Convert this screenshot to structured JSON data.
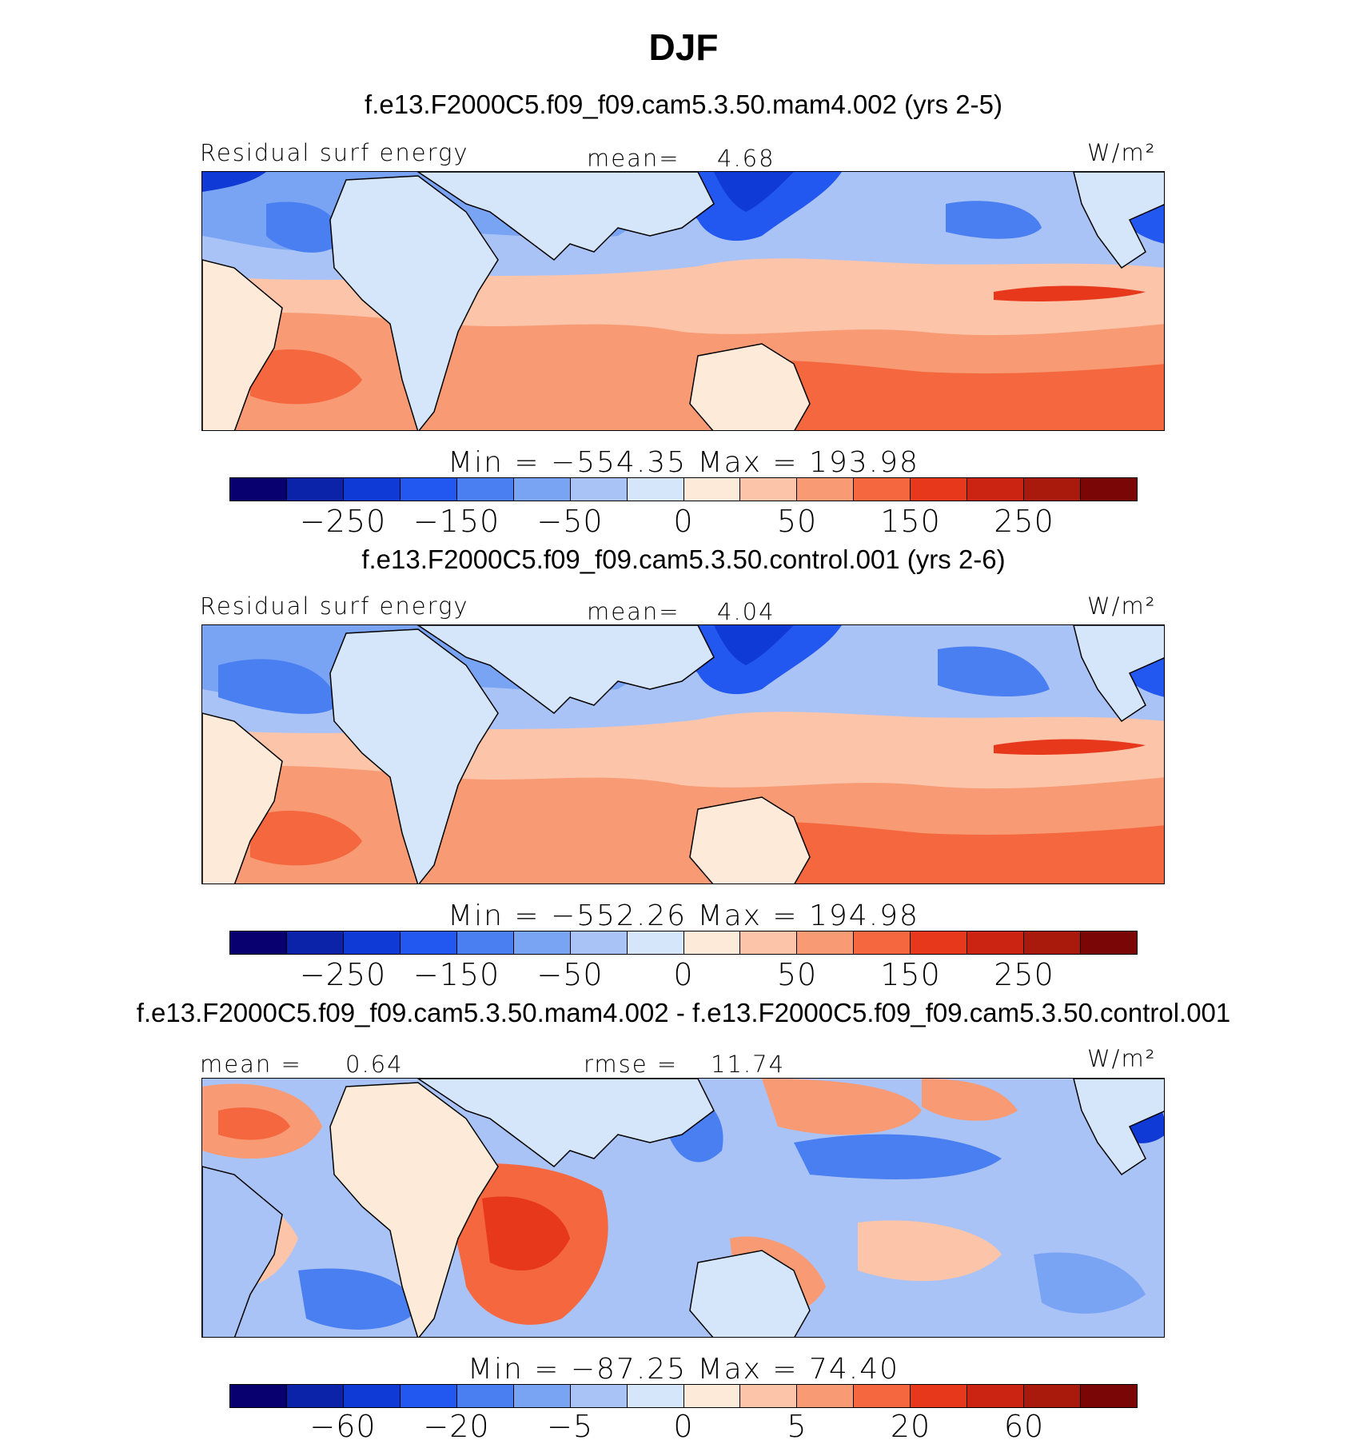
{
  "title": "DJF",
  "palette": {
    "standard": [
      "#08006e",
      "#0a23a8",
      "#0f3ad6",
      "#2257f0",
      "#4a7ff2",
      "#79a3f3",
      "#aac3f7",
      "#d5e6fb",
      "#feead8",
      "#fcc4a9",
      "#f89a73",
      "#f4673f",
      "#e8381c",
      "#cc2412",
      "#aa1a0c",
      "#7a0606"
    ],
    "continent_fill": "#d5e6fb",
    "coastline": "#000000"
  },
  "panels": [
    {
      "run_title": "f.e13.F2000C5.f09_f09.cam5.3.50.mam4.002 (yrs 2-5)",
      "left_label": "Residual surf energy",
      "mean_label": "mean=",
      "mean_value": "4.68",
      "units": "W/m²",
      "min_max": "Min = −554.35  Max =  193.98",
      "ticks": [
        "−250",
        "−150",
        "−50",
        "0",
        "50",
        "150",
        "250"
      ]
    },
    {
      "run_title": "f.e13.F2000C5.f09_f09.cam5.3.50.control.001 (yrs 2-6)",
      "left_label": "Residual surf energy",
      "mean_label": "mean=",
      "mean_value": "4.04",
      "units": "W/m²",
      "min_max": "Min = −552.26  Max =  194.98",
      "ticks": [
        "−250",
        "−150",
        "−50",
        "0",
        "50",
        "150",
        "250"
      ]
    },
    {
      "run_title": "f.e13.F2000C5.f09_f09.cam5.3.50.mam4.002 - f.e13.F2000C5.f09_f09.cam5.3.50.control.001",
      "mean_label": "mean =",
      "mean_value": "0.64",
      "rmse_label": "rmse =",
      "rmse_value": "11.74",
      "units": "W/m²",
      "min_max": "Min = −87.25  Max =   74.40",
      "ticks": [
        "−60",
        "−20",
        "−5",
        "0",
        "5",
        "20",
        "60"
      ]
    }
  ]
}
